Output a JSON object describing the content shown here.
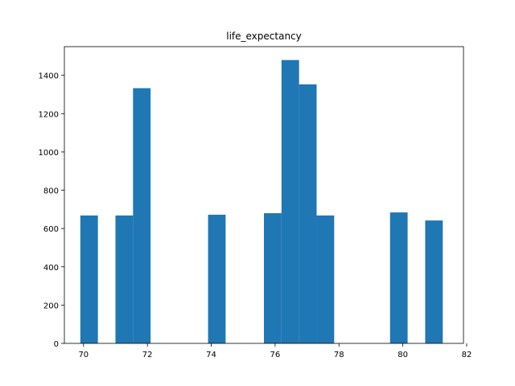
{
  "chart_data": {
    "type": "bar",
    "title": "life_expectancy",
    "xlabel": "",
    "ylabel": "",
    "xlim": [
      69.4,
      81.9
    ],
    "ylim": [
      0,
      1550
    ],
    "x_ticks": [
      70,
      72,
      74,
      76,
      78,
      80,
      82
    ],
    "y_ticks": [
      0,
      200,
      400,
      600,
      800,
      1000,
      1200,
      1400
    ],
    "grid": false,
    "legend": "none",
    "bar_color": "#1f77b4",
    "bins": [
      {
        "x0": 69.9,
        "x1": 70.45,
        "count": 668
      },
      {
        "x0": 71.0,
        "x1": 71.55,
        "count": 668
      },
      {
        "x0": 71.55,
        "x1": 72.1,
        "count": 1333
      },
      {
        "x0": 73.9,
        "x1": 74.45,
        "count": 672
      },
      {
        "x0": 75.65,
        "x1": 76.2,
        "count": 680
      },
      {
        "x0": 76.2,
        "x1": 76.75,
        "count": 1480
      },
      {
        "x0": 76.75,
        "x1": 77.3,
        "count": 1353
      },
      {
        "x0": 77.3,
        "x1": 77.85,
        "count": 668
      },
      {
        "x0": 79.6,
        "x1": 80.15,
        "count": 684
      },
      {
        "x0": 80.7,
        "x1": 81.25,
        "count": 642
      }
    ]
  }
}
